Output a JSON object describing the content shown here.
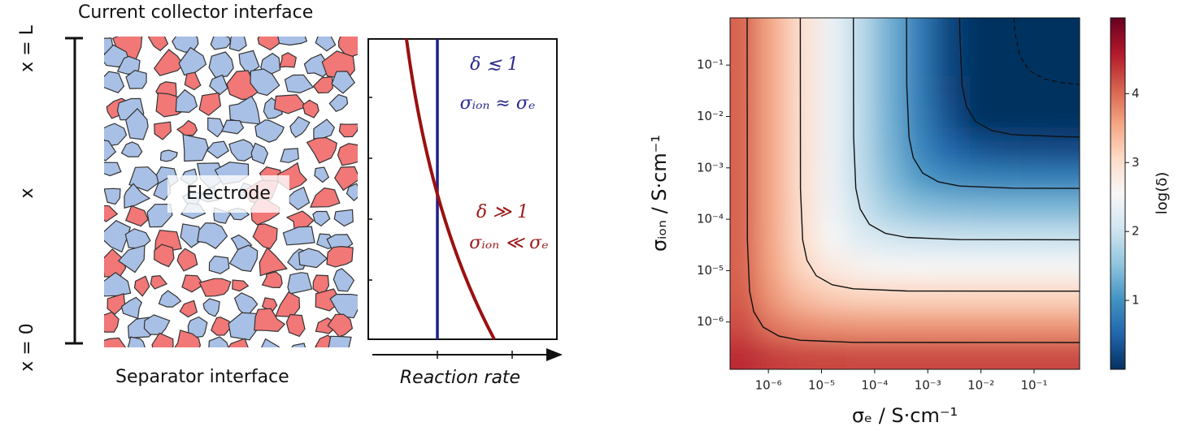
{
  "diagram": {
    "top_label": "Current collector interface",
    "bottom_label": "Separator interface",
    "electrode_label": "Electrode",
    "x_top": "x = L",
    "x_mid": "x",
    "x_bottom": "x = 0",
    "rate_axis_label": "Reaction rate",
    "low_delta": "δ ≲ 1",
    "low_relation": "σᵢₒₙ ≈ σₑ",
    "high_delta": "δ ≫ 1",
    "high_relation": "σᵢₒₙ ≪ σₑ"
  },
  "chart_data": {
    "type": "heatmap",
    "xlabel": "σₑ / S·cm⁻¹",
    "ylabel": "σᵢₒₙ / S·cm⁻¹",
    "colorbar_label": "log(δ)",
    "xscale": "log",
    "yscale": "log",
    "xlim": [
      1.9e-07,
      0.72
    ],
    "ylim": [
      1.2e-07,
      0.83
    ],
    "xticks": [
      {
        "value": 1e-06,
        "label": "10⁻⁶"
      },
      {
        "value": 1e-05,
        "label": "10⁻⁵"
      },
      {
        "value": 0.0001,
        "label": "10⁻⁴"
      },
      {
        "value": 0.001,
        "label": "10⁻³"
      },
      {
        "value": 0.01,
        "label": "10⁻²"
      },
      {
        "value": 0.1,
        "label": "10⁻¹"
      }
    ],
    "yticks": [
      {
        "value": 1e-06,
        "label": "10⁻⁶"
      },
      {
        "value": 1e-05,
        "label": "10⁻⁵"
      },
      {
        "value": 0.0001,
        "label": "10⁻⁴"
      },
      {
        "value": 0.001,
        "label": "10⁻³"
      },
      {
        "value": 0.01,
        "label": "10⁻²"
      },
      {
        "value": 0.1,
        "label": "10⁻¹"
      }
    ],
    "clim": [
      0,
      5.1
    ],
    "cticks": [
      1,
      2,
      3,
      4
    ],
    "colormap": [
      "#053061",
      "#2166ac",
      "#4393c3",
      "#92c5de",
      "#d1e5f0",
      "#f7f7f7",
      "#fddbc7",
      "#f4a582",
      "#d6604d",
      "#b2182b",
      "#67001f"
    ],
    "x": [
      3.55e-07,
      1.26e-06,
      4.47e-06,
      1.58e-05,
      5.5e-05,
      0.000195,
      0.00069,
      0.00245,
      0.0085,
      0.0302,
      0.107,
      0.38
    ],
    "y": [
      0.427,
      0.115,
      0.0309,
      0.0083,
      0.00224,
      0.0006,
      0.000162,
      4.27e-05,
      1.15e-05,
      3.09e-06,
      8.3e-07,
      2.24e-07
    ],
    "z": [
      [
        4.05,
        3.5,
        2.95,
        2.4,
        1.86,
        1.31,
        0.76,
        0.21,
        -0.32,
        -0.85,
        -1.33,
        -1.7
      ],
      [
        4.05,
        3.5,
        2.95,
        2.4,
        1.86,
        1.31,
        0.76,
        0.22,
        -0.3,
        -0.78,
        -1.14,
        -1.35
      ],
      [
        4.05,
        3.5,
        2.95,
        2.4,
        1.86,
        1.31,
        0.77,
        0.24,
        -0.22,
        -0.58,
        -0.78,
        -0.86
      ],
      [
        4.05,
        3.5,
        2.95,
        2.4,
        1.86,
        1.32,
        0.8,
        0.32,
        -0.03,
        -0.21,
        -0.29,
        -0.31
      ],
      [
        4.05,
        3.5,
        2.95,
        2.4,
        1.87,
        1.35,
        0.88,
        0.53,
        0.35,
        0.28,
        0.26,
        0.25
      ],
      [
        4.05,
        3.5,
        2.95,
        2.41,
        1.9,
        1.43,
        1.1,
        0.92,
        0.85,
        0.83,
        0.82,
        0.82
      ],
      [
        4.05,
        3.5,
        2.96,
        2.44,
        1.99,
        1.65,
        1.48,
        1.42,
        1.4,
        1.39,
        1.39,
        1.39
      ],
      [
        4.05,
        3.51,
        2.99,
        2.54,
        2.22,
        2.06,
        2.0,
        1.98,
        1.97,
        1.97,
        1.97,
        1.97
      ],
      [
        4.06,
        3.55,
        3.09,
        2.78,
        2.62,
        2.57,
        2.55,
        2.54,
        2.54,
        2.54,
        2.54,
        2.54
      ],
      [
        4.1,
        3.65,
        3.34,
        3.19,
        3.13,
        3.12,
        3.11,
        3.11,
        3.11,
        3.11,
        3.11,
        3.11
      ],
      [
        4.21,
        3.9,
        3.76,
        3.7,
        3.69,
        3.68,
        3.68,
        3.68,
        3.68,
        3.68,
        3.68,
        3.68
      ],
      [
        4.46,
        4.32,
        4.27,
        4.26,
        4.25,
        4.25,
        4.25,
        4.25,
        4.25,
        4.25,
        4.25,
        4.25
      ]
    ],
    "contour_color": "#111111",
    "contours": [
      {
        "linestyle": "solid",
        "x": [
          3.98e-07,
          4.02e-07,
          4.42e-07,
          5.32e-07,
          7.96e-07,
          1.585e-06,
          3.98e-06,
          3.98e-05,
          0.72
        ],
        "y": [
          0.83,
          3.98e-05,
          3.98e-06,
          1.585e-06,
          7.96e-07,
          5.32e-07,
          4.42e-07,
          4.02e-07,
          3.98e-07
        ]
      },
      {
        "linestyle": "solid",
        "x": [
          3.98e-06,
          4.02e-06,
          4.42e-06,
          5.32e-06,
          7.96e-06,
          1.585e-05,
          3.98e-05,
          0.000398,
          0.72
        ],
        "y": [
          0.83,
          0.000398,
          3.98e-05,
          1.585e-05,
          7.96e-06,
          5.32e-06,
          4.42e-06,
          4.02e-06,
          3.98e-06
        ]
      },
      {
        "linestyle": "solid",
        "x": [
          3.98e-05,
          4.02e-05,
          4.42e-05,
          5.32e-05,
          7.96e-05,
          0.0001585,
          0.000398,
          0.00398,
          0.72
        ],
        "y": [
          0.83,
          0.00398,
          0.000398,
          0.0001585,
          7.96e-05,
          5.32e-05,
          4.42e-05,
          4.02e-05,
          3.98e-05
        ]
      },
      {
        "linestyle": "solid",
        "x": [
          0.000398,
          0.000402,
          0.000442,
          0.000532,
          0.000796,
          0.001585,
          0.00398,
          0.0398,
          0.72
        ],
        "y": [
          0.83,
          0.0398,
          0.00398,
          0.001585,
          0.000796,
          0.000532,
          0.000442,
          0.000402,
          0.000398
        ]
      },
      {
        "linestyle": "solid",
        "x": [
          0.00398,
          0.00402,
          0.00442,
          0.00532,
          0.00796,
          0.01585,
          0.0398,
          0.398,
          0.72
        ],
        "y": [
          0.83,
          0.398,
          0.0398,
          0.01585,
          0.00796,
          0.00532,
          0.00442,
          0.00402,
          0.00398
        ]
      },
      {
        "linestyle": "dashed",
        "x": [
          0.0418,
          0.0442,
          0.0532,
          0.0796,
          0.1585,
          0.398,
          0.72
        ],
        "y": [
          0.83,
          0.398,
          0.1585,
          0.0796,
          0.0532,
          0.0442,
          0.0421
        ]
      }
    ]
  }
}
